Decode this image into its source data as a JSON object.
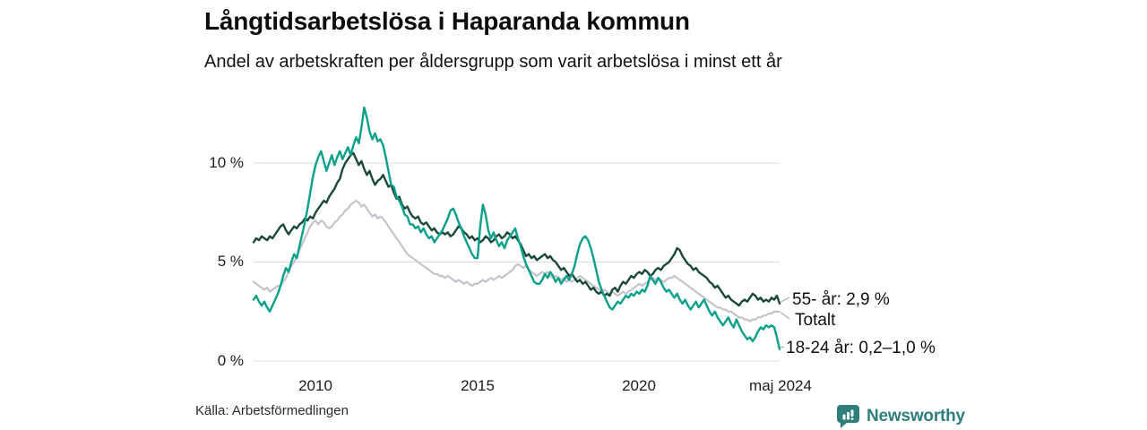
{
  "header": {
    "title": "Långtidsarbetslösa i Haparanda kommun",
    "subtitle": "Andel av arbetskraften per åldersgrupp som varit arbetslösa i minst ett år"
  },
  "footer": {
    "source": "Källa: Arbetsförmedlingen",
    "brand": "Newsworthy",
    "brand_color": "#2e7e7c"
  },
  "chart_data": {
    "type": "line",
    "title": "Långtidsarbetslösa i Haparanda kommun",
    "subtitle": "Andel av arbetskraften per åldersgrupp som varit arbetslösa i minst ett år",
    "frequency": "monthly",
    "x_start": "2008-02",
    "x_end": "2024-05",
    "xlabel": "",
    "ylabel": "",
    "ylim": [
      0,
      13
    ],
    "grid": "horizontal",
    "grid_color": "#dcdcdc",
    "legend_position": "right-of-line-ends",
    "y_ticks": [
      0,
      5,
      10
    ],
    "y_tick_labels": [
      "0 %",
      "5 %",
      "10 %"
    ],
    "x_tick_labels": [
      "2010",
      "2015",
      "2020",
      "maj 2024"
    ],
    "series": [
      {
        "name": "Totalt",
        "label": "Totalt",
        "color": "#c4c2cc",
        "width": 2.2,
        "z": 1,
        "values": [
          4.0,
          3.9,
          3.8,
          3.7,
          3.6,
          3.7,
          3.5,
          3.6,
          3.7,
          3.8,
          3.8,
          4.0,
          4.2,
          4.5,
          4.8,
          5.0,
          5.3,
          5.6,
          5.9,
          6.2,
          6.5,
          6.8,
          7.0,
          7.1,
          6.9,
          7.1,
          7.0,
          6.8,
          6.7,
          6.8,
          7.0,
          7.1,
          7.3,
          7.4,
          7.6,
          7.7,
          7.9,
          8.0,
          8.1,
          8.0,
          7.8,
          7.9,
          7.7,
          7.5,
          7.3,
          7.4,
          7.2,
          7.3,
          7.2,
          7.0,
          6.8,
          6.6,
          6.4,
          6.2,
          6.0,
          5.8,
          5.6,
          5.4,
          5.3,
          5.2,
          5.1,
          5.0,
          4.9,
          4.8,
          4.7,
          4.6,
          4.5,
          4.4,
          4.4,
          4.3,
          4.3,
          4.2,
          4.3,
          4.2,
          4.1,
          4.0,
          4.1,
          4.0,
          3.9,
          4.0,
          3.9,
          3.8,
          3.9,
          3.9,
          4.0,
          4.1,
          4.0,
          4.1,
          4.2,
          4.1,
          4.2,
          4.3,
          4.2,
          4.3,
          4.4,
          4.5,
          4.6,
          4.8,
          4.9,
          4.8,
          4.7,
          4.8,
          4.6,
          4.5,
          4.4,
          4.3,
          4.4,
          4.5,
          4.4,
          4.5,
          4.3,
          4.2,
          4.3,
          4.2,
          4.1,
          4.2,
          4.0,
          4.1,
          4.0,
          4.1,
          4.2,
          4.3,
          4.2,
          4.1,
          4.0,
          3.9,
          3.8,
          3.7,
          3.6,
          3.5,
          3.6,
          3.5,
          3.4,
          3.5,
          3.4,
          3.3,
          3.4,
          3.5,
          3.4,
          3.5,
          3.6,
          3.7,
          3.8,
          3.9,
          3.8,
          3.9,
          4.0,
          4.1,
          4.2,
          4.1,
          4.2,
          4.1,
          4.0,
          4.1,
          4.2,
          4.2,
          4.3,
          4.2,
          4.1,
          4.0,
          3.9,
          3.8,
          3.7,
          3.6,
          3.5,
          3.4,
          3.3,
          3.2,
          3.1,
          3.0,
          2.9,
          2.8,
          2.7,
          2.7,
          2.6,
          2.6,
          2.5,
          2.5,
          2.4,
          2.3,
          2.2,
          2.2,
          2.1,
          2.1,
          2.0,
          2.1,
          2.1,
          2.2,
          2.2,
          2.3,
          2.3,
          2.4,
          2.4,
          2.5,
          2.5,
          2.5
        ]
      },
      {
        "name": "55- år",
        "label": "55- år: 2,9 %",
        "color": "#1c4a3a",
        "width": 2.4,
        "z": 2,
        "values": [
          6.0,
          6.2,
          6.1,
          6.3,
          6.2,
          6.1,
          6.3,
          6.2,
          6.4,
          6.6,
          6.8,
          6.9,
          6.6,
          6.4,
          6.6,
          6.8,
          6.7,
          6.9,
          7.0,
          7.2,
          7.1,
          7.3,
          7.2,
          7.5,
          7.7,
          7.9,
          8.1,
          8.0,
          8.3,
          8.5,
          8.7,
          9.0,
          9.2,
          9.7,
          10.0,
          10.2,
          10.4,
          10.5,
          10.2,
          9.9,
          10.1,
          9.7,
          9.4,
          9.6,
          9.2,
          8.9,
          9.1,
          9.2,
          9.4,
          9.1,
          8.8,
          8.9,
          8.5,
          8.2,
          8.3,
          7.9,
          7.7,
          7.8,
          7.5,
          7.3,
          7.2,
          7.3,
          7.0,
          6.9,
          7.0,
          6.8,
          6.6,
          6.7,
          6.5,
          6.4,
          6.5,
          6.4,
          6.5,
          6.3,
          6.4,
          6.6,
          6.8,
          6.7,
          6.5,
          6.4,
          6.2,
          6.3,
          6.1,
          6.2,
          6.0,
          6.1,
          6.3,
          6.2,
          6.0,
          6.1,
          6.3,
          6.4,
          6.2,
          6.3,
          6.5,
          6.4,
          6.2,
          6.3,
          6.1,
          5.9,
          5.6,
          5.3,
          5.4,
          5.2,
          5.3,
          5.1,
          5.2,
          5.3,
          5.4,
          5.2,
          5.3,
          5.1,
          5.0,
          4.8,
          4.6,
          4.7,
          4.5,
          4.3,
          4.4,
          4.2,
          4.0,
          4.1,
          3.9,
          4.0,
          3.8,
          3.6,
          3.7,
          3.5,
          3.4,
          3.5,
          3.3,
          3.4,
          3.3,
          3.6,
          3.7,
          3.5,
          3.8,
          4.0,
          3.9,
          4.1,
          4.3,
          4.2,
          4.4,
          4.5,
          4.4,
          4.6,
          4.5,
          4.3,
          4.4,
          4.6,
          4.7,
          4.6,
          4.8,
          4.9,
          5.0,
          5.2,
          5.4,
          5.7,
          5.6,
          5.3,
          5.1,
          4.9,
          4.8,
          4.6,
          4.7,
          4.5,
          4.4,
          4.3,
          4.2,
          4.0,
          3.9,
          3.7,
          3.8,
          3.6,
          3.4,
          3.2,
          3.3,
          3.1,
          3.0,
          2.9,
          2.8,
          3.0,
          3.1,
          3.0,
          3.2,
          3.4,
          3.3,
          3.1,
          3.2,
          3.0,
          3.1,
          3.0,
          3.2,
          3.1,
          3.3,
          2.9
        ]
      },
      {
        "name": "18-24 år",
        "label": "18-24 år: 0,2–1,0 %",
        "color": "#0aa08a",
        "width": 2.4,
        "z": 3,
        "values": [
          3.1,
          3.3,
          3.0,
          2.8,
          3.0,
          2.7,
          2.5,
          2.8,
          3.1,
          3.4,
          3.8,
          4.3,
          4.7,
          4.5,
          5.0,
          5.4,
          5.2,
          5.8,
          6.4,
          7.0,
          7.7,
          8.5,
          9.3,
          9.9,
          10.3,
          10.6,
          10.1,
          9.6,
          10.0,
          10.4,
          9.9,
          10.3,
          10.6,
          10.2,
          10.5,
          10.8,
          10.4,
          10.9,
          11.3,
          11.0,
          11.8,
          12.8,
          12.3,
          11.6,
          11.2,
          11.5,
          11.1,
          11.2,
          10.9,
          10.3,
          9.6,
          8.9,
          8.8,
          8.3,
          8.1,
          7.8,
          7.4,
          7.3,
          6.9,
          6.9,
          6.7,
          6.8,
          6.5,
          6.7,
          6.4,
          6.2,
          6.3,
          6.0,
          6.2,
          6.4,
          6.6,
          6.9,
          7.2,
          7.6,
          7.7,
          7.4,
          7.0,
          6.7,
          6.3,
          6.0,
          5.7,
          5.4,
          5.2,
          5.2,
          6.8,
          7.9,
          7.4,
          6.6,
          6.2,
          6.5,
          6.1,
          5.8,
          6.0,
          5.7,
          6.1,
          6.3,
          6.5,
          6.7,
          6.2,
          5.8,
          5.3,
          4.9,
          4.6,
          4.3,
          4.0,
          3.9,
          3.9,
          4.1,
          4.4,
          4.2,
          4.5,
          4.3,
          4.0,
          4.2,
          3.9,
          4.1,
          4.3,
          4.1,
          4.4,
          4.8,
          5.4,
          5.9,
          6.2,
          6.3,
          6.1,
          5.7,
          5.2,
          4.6,
          4.0,
          3.6,
          3.3,
          3.0,
          2.7,
          2.6,
          2.8,
          3.0,
          2.9,
          3.1,
          3.3,
          3.2,
          3.4,
          3.3,
          3.5,
          3.4,
          3.6,
          3.5,
          3.8,
          4.3,
          4.1,
          3.9,
          4.2,
          4.0,
          3.7,
          3.5,
          3.6,
          3.4,
          3.2,
          3.4,
          3.1,
          2.9,
          3.1,
          2.8,
          2.6,
          2.8,
          3.0,
          2.7,
          2.9,
          3.1,
          2.8,
          2.5,
          2.3,
          2.5,
          2.2,
          2.0,
          1.8,
          2.0,
          2.2,
          1.9,
          1.7,
          2.1,
          1.8,
          1.5,
          1.3,
          1.1,
          1.2,
          1.0,
          1.2,
          1.5,
          1.7,
          1.6,
          1.8,
          1.7,
          1.8,
          1.7,
          1.2,
          0.6
        ]
      }
    ]
  }
}
